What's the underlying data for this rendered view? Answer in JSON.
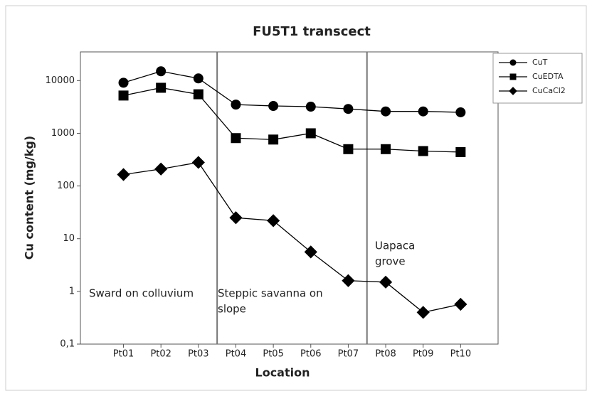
{
  "chart_data": {
    "type": "line",
    "title": "FU5T1 transcect",
    "xlabel": "Location",
    "ylabel": "Cu content (mg/kg)",
    "categories": [
      "Pt01",
      "Pt02",
      "Pt03",
      "Pt04",
      "Pt05",
      "Pt06",
      "Pt07",
      "Pt08",
      "Pt09",
      "Pt10"
    ],
    "series": [
      {
        "name": "CuT",
        "color": "#000000",
        "marker": "circle",
        "values": [
          9100,
          15000,
          11000,
          3500,
          3300,
          3200,
          2900,
          2600,
          2600,
          2500
        ]
      },
      {
        "name": "CuEDTA",
        "color": "#000000",
        "marker": "square",
        "values": [
          5200,
          7300,
          5500,
          810,
          760,
          1000,
          500,
          500,
          460,
          440
        ]
      },
      {
        "name": "CuCaCl2",
        "color": "#000000",
        "marker": "diamond",
        "values": [
          165,
          210,
          280,
          25,
          22,
          5.6,
          1.6,
          1.5,
          0.4,
          0.57
        ]
      }
    ],
    "ylim": [
      0.1,
      35000
    ],
    "log_y": true,
    "yticks": [
      {
        "value": 0.1,
        "label": "0,1"
      },
      1,
      10,
      100,
      1000,
      10000
    ],
    "annotations": [
      [
        "Sward on colluvium"
      ],
      [
        "Steppic savanna on",
        "slope"
      ],
      [
        "Uapaca",
        "grove"
      ]
    ],
    "legend": "outside-right"
  }
}
